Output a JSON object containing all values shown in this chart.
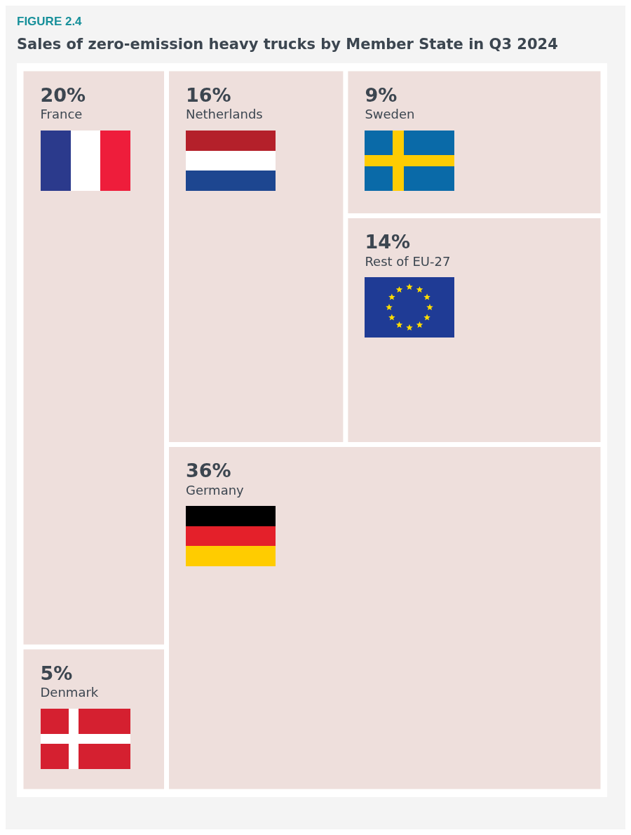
{
  "chart_data": {
    "type": "other",
    "title": "Sales of zero-emission heavy trucks by Member State in Q3 2024",
    "annotations": [
      "FIGURE 2.4"
    ],
    "categories": [
      "France",
      "Netherlands",
      "Sweden",
      "Rest of EU-27",
      "Germany",
      "Denmark"
    ],
    "values": [
      20,
      16,
      9,
      14,
      36,
      5
    ],
    "value_labels": [
      "20%",
      "16%",
      "9%",
      "14%",
      "36%",
      "5%"
    ],
    "colors": [
      "#eedfdc",
      "#eedfdc",
      "#eedfdc",
      "#eedfdc",
      "#eedfdc",
      "#eedfdc"
    ]
  }
}
